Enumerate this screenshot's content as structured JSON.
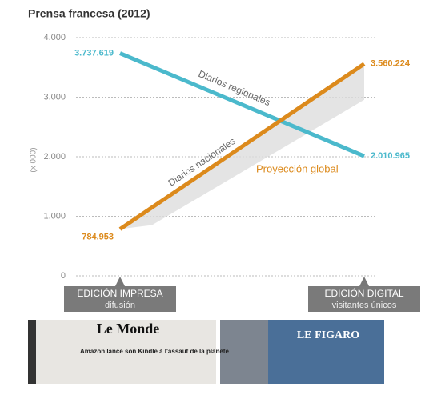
{
  "chart_data": {
    "type": "line",
    "title": "Prensa francesa (2012)",
    "y_label": "(x 000)",
    "categories": [
      "EDICIÓN IMPRESA",
      "EDICIÓN DIGITAL"
    ],
    "category_subtitles": [
      "difusión",
      "visitantes únicos"
    ],
    "series": [
      {
        "name": "Diarios regionales",
        "color": "#4bb9cc",
        "values": [
          3737.619,
          2010.965
        ],
        "value_labels": [
          "3.737.619",
          "2.010.965"
        ]
      },
      {
        "name": "Diarios nacionales",
        "color": "#dc8a1c",
        "values": [
          784.953,
          3560.224
        ],
        "value_labels": [
          "784.953",
          "3.560.224"
        ]
      }
    ],
    "annotation": "Proyección global",
    "ylim": [
      0,
      4000
    ],
    "yticks": [
      0,
      {
        "value": 1000,
        "label": "1.000"
      },
      {
        "value": 2000,
        "label": "2.000"
      },
      {
        "value": 3000,
        "label": "3.000"
      },
      {
        "value": 4000,
        "label": "4.000"
      }
    ],
    "grid": true
  },
  "photos": {
    "texts": [
      "Le Monde",
      "Amazon lance son Kindle à l'assaut de la planète",
      "LE FIGARO"
    ]
  }
}
